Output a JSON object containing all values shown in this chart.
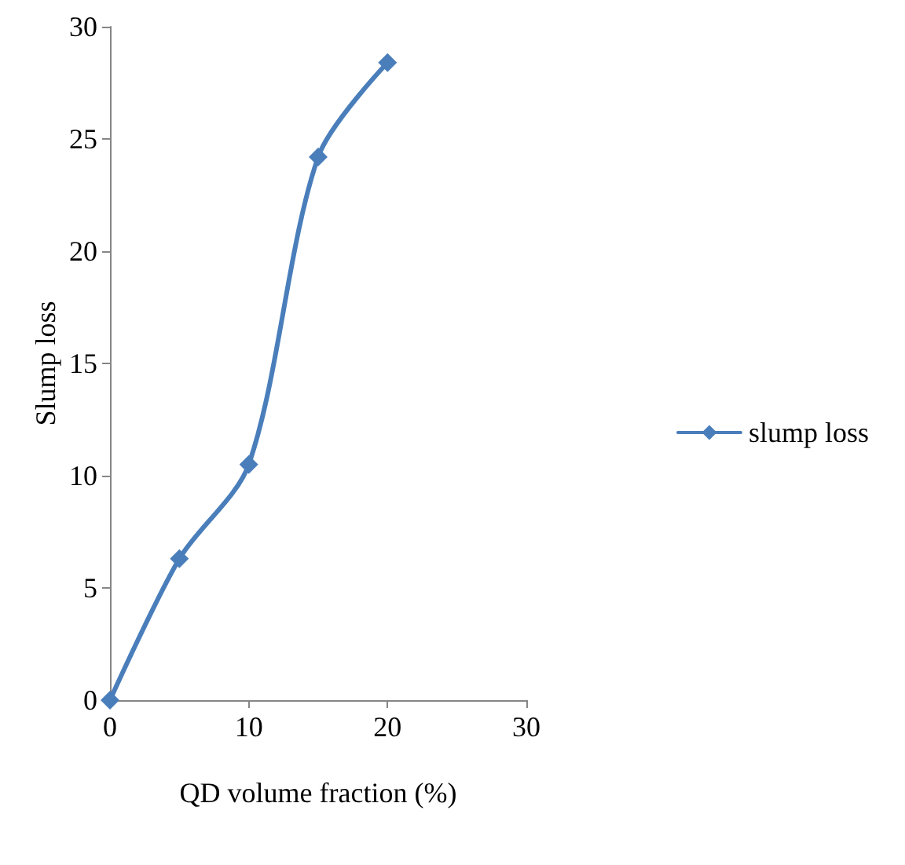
{
  "chart_data": {
    "type": "line",
    "xlabel": "QD volume fraction (%)",
    "ylabel": "Slump loss",
    "x": [
      0,
      5,
      10,
      15,
      20
    ],
    "series": [
      {
        "name": "slump loss",
        "color": "#4a7ebb",
        "values": [
          0,
          6.3,
          10.5,
          24.2,
          28.4
        ]
      }
    ],
    "xlim": [
      0,
      30
    ],
    "xticks": [
      0,
      10,
      20,
      30
    ],
    "ylim": [
      0,
      30
    ],
    "yticks": [
      0,
      5,
      10,
      15,
      20,
      25,
      30
    ],
    "grid": false,
    "legend": "right",
    "marker": "diamond",
    "line_style": "solid"
  }
}
